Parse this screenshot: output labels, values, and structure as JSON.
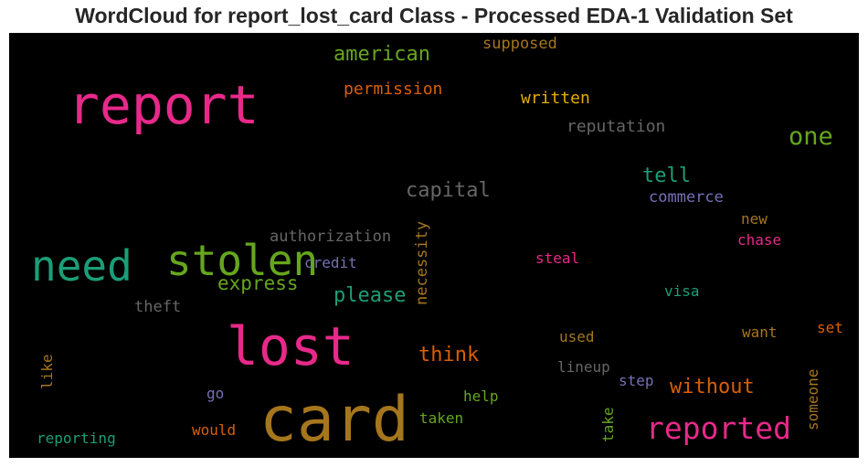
{
  "title": "WordCloud for report_lost_card Class - Processed EDA-1 Validation Set",
  "colors": {
    "pink": "#e7298a",
    "brown": "#a6761d",
    "green": "#66a61e",
    "teal": "#1b9e77",
    "orange": "#d95f02",
    "purple": "#7570b3",
    "gray": "#666666",
    "gold": "#e6ab02"
  },
  "words": [
    {
      "text": "report",
      "color": "pink"
    },
    {
      "text": "card",
      "color": "brown"
    },
    {
      "text": "lost",
      "color": "pink"
    },
    {
      "text": "need",
      "color": "teal"
    },
    {
      "text": "stolen",
      "color": "green"
    },
    {
      "text": "reported",
      "color": "pink"
    },
    {
      "text": "one",
      "color": "green"
    },
    {
      "text": "american",
      "color": "green"
    },
    {
      "text": "capital",
      "color": "gray"
    },
    {
      "text": "tell",
      "color": "teal"
    },
    {
      "text": "please",
      "color": "teal"
    },
    {
      "text": "express",
      "color": "green"
    },
    {
      "text": "think",
      "color": "orange"
    },
    {
      "text": "without",
      "color": "orange"
    },
    {
      "text": "permission",
      "color": "orange"
    },
    {
      "text": "written",
      "color": "gold"
    },
    {
      "text": "supposed",
      "color": "brown"
    },
    {
      "text": "reputation",
      "color": "gray"
    },
    {
      "text": "commerce",
      "color": "purple"
    },
    {
      "text": "authorization",
      "color": "gray"
    },
    {
      "text": "necessity",
      "color": "brown"
    },
    {
      "text": "credit",
      "color": "purple"
    },
    {
      "text": "steal",
      "color": "pink"
    },
    {
      "text": "new",
      "color": "brown"
    },
    {
      "text": "chase",
      "color": "pink"
    },
    {
      "text": "theft",
      "color": "gray"
    },
    {
      "text": "visa",
      "color": "teal"
    },
    {
      "text": "want",
      "color": "brown"
    },
    {
      "text": "set",
      "color": "orange"
    },
    {
      "text": "used",
      "color": "brown"
    },
    {
      "text": "lineup",
      "color": "gray"
    },
    {
      "text": "step",
      "color": "purple"
    },
    {
      "text": "like",
      "color": "brown"
    },
    {
      "text": "go",
      "color": "purple"
    },
    {
      "text": "help",
      "color": "green"
    },
    {
      "text": "taken",
      "color": "green"
    },
    {
      "text": "would",
      "color": "orange"
    },
    {
      "text": "reporting",
      "color": "teal"
    },
    {
      "text": "take",
      "color": "green"
    },
    {
      "text": "someone",
      "color": "brown"
    }
  ]
}
